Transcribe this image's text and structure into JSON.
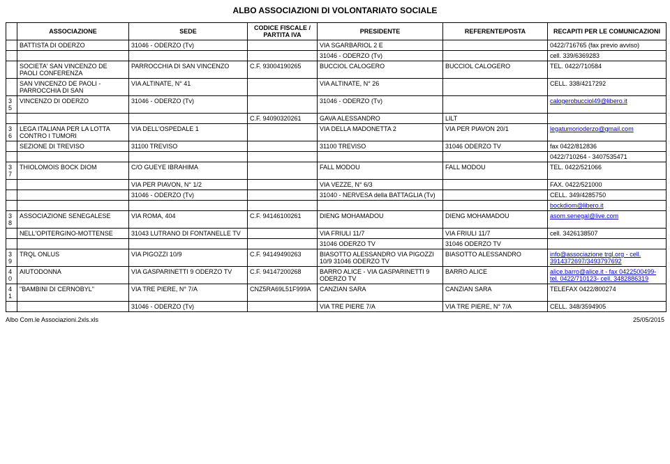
{
  "title": "ALBO ASSOCIAZIONI DI VOLONTARIATO SOCIALE",
  "headers": {
    "num": "",
    "assoc": "ASSOCIAZIONE",
    "sede": "SEDE",
    "cf": "CODICE FISCALE / PARTITA IVA",
    "pres": "PRESIDENTE",
    "ref": "REFERENTE/POSTA",
    "contact": "RECAPITI PER LE COMUNICAZIONI"
  },
  "footer": {
    "left": "Albo Com.le Associazioni.2xls.xls",
    "right": "25/05/2015"
  },
  "rows": [
    {
      "num": "",
      "assoc": "BATTISTA DI ODERZO",
      "sede": "31046 - ODERZO (Tv)",
      "cf": "",
      "pres": "VIA SGARBARIOL 2 E",
      "ref": "",
      "contact": "0422/716765 (fax previo avviso)"
    },
    {
      "num": "",
      "assoc": "",
      "sede": "",
      "cf": "",
      "pres": "31046 - ODERZO (Tv)",
      "ref": "",
      "contact": "cell. 339/6369283"
    },
    {
      "num": "",
      "assoc": "SOCIETA' SAN VINCENZO DE PAOLI CONFERENZA",
      "sede": "PARROCCHIA DI SAN VINCENZO",
      "cf": "C.F. 93004190265",
      "pres": "BUCCIOL CALOGERO",
      "ref": "BUCCIOL CALOGERO",
      "contact": "TEL. 0422/710584"
    },
    {
      "num": "",
      "assoc": "SAN VINCENZO DE PAOLI - PARROCCHIA DI SAN",
      "sede": "VIA ALTINATE, N° 41",
      "cf": "",
      "pres": "VIA ALTINATE, N° 26",
      "ref": "",
      "contact": "CELL. 338/4217292"
    },
    {
      "num": "35",
      "assoc": "VINCENZO  DI ODERZO",
      "sede": "31046 - ODERZO (Tv)",
      "cf": "",
      "pres": "31046 - ODERZO (Tv)",
      "ref": "",
      "contact": "calogerobucciol49@libero.it",
      "contactLink": true
    },
    {
      "num": "",
      "assoc": "",
      "sede": "",
      "cf": "C.F. 94090320261",
      "pres": "GAVA ALESSANDRO",
      "ref": "LILT",
      "contact": ""
    },
    {
      "num": "36",
      "assoc": "LEGA ITALIANA PER LA LOTTA CONTRO I TUMORI",
      "sede": "VIA DELL'OSPEDALE 1",
      "cf": "",
      "pres": "VIA DELLA MADONETTA 2",
      "ref": "VIA PER PIAVON 20/1",
      "contact": "legatumorioderzo@gmail.com",
      "contactLink": true
    },
    {
      "num": "",
      "assoc": "SEZIONE DI TREVISO",
      "sede": "31100 TREVISO",
      "cf": "",
      "pres": "31100 TREVISO",
      "ref": "31046 ODERZO TV",
      "contact": "fax 0422/812836"
    },
    {
      "num": "",
      "assoc": "",
      "sede": "",
      "cf": "",
      "pres": "",
      "ref": "",
      "contact": "0422/710264 - 3407535471"
    },
    {
      "num": "37",
      "assoc": "THIOLOMOIS BOCK DIOM",
      "sede": "C/O GUEYE IBRAHIMA",
      "cf": "",
      "pres": "FALL MODOU",
      "ref": "FALL MODOU",
      "contact": "TEL. 0422/521066"
    },
    {
      "num": "",
      "assoc": "",
      "sede": "VIA PER PIAVON, N° 1/2",
      "cf": "",
      "pres": "VIA VEZZE, N° 6/3",
      "ref": "",
      "contact": "FAX. 0422/521000"
    },
    {
      "num": "",
      "assoc": "",
      "sede": "31046 - ODERZO (Tv)",
      "cf": "",
      "pres": "31040 - NERVESA della BATTAGLIA (Tv)",
      "ref": "",
      "contact": "CELL. 349/4285750"
    },
    {
      "num": "",
      "assoc": "",
      "sede": "",
      "cf": "",
      "pres": "",
      "ref": "",
      "contact": "bockdiom@libero.it",
      "contactLink": true
    },
    {
      "num": "38",
      "assoc": "ASSOCIAZIONE SENEGALESE",
      "sede": "VIA ROMA, 404",
      "cf": "C.F. 94146100261",
      "pres": "DIENG MOHAMADOU",
      "ref": "DIENG MOHAMADOU",
      "contact": "asom.senegal@live.com",
      "contactLink": true
    },
    {
      "num": "",
      "assoc": "NELL'OPITERGINO-MOTTENSE",
      "sede": "31043 LUTRANO DI FONTANELLE TV",
      "cf": "",
      "pres": "VIA FRIULI 11/7",
      "ref": "VIA FRIULI 11/7",
      "contact": "cell. 3426138507"
    },
    {
      "num": "",
      "assoc": "",
      "sede": "",
      "cf": "",
      "pres": "31046 ODERZO TV",
      "ref": "31046 ODERZO TV",
      "contact": ""
    },
    {
      "num": "39",
      "assoc": "TRQL ONLUS",
      "sede": "VIA PIGOZZI 10/9",
      "cf": "C.F. 94149490263",
      "pres": "BIASOTTO ALESSANDRO VIA PIGOZZI 10/9 31046 ODERZO TV",
      "ref": "BIASOTTO ALESSANDRO",
      "contact": "info@associazione trql.org - cell. 3914372697/3493797692",
      "contactLink": true
    },
    {
      "num": "40",
      "assoc": "AIUTODONNA",
      "sede": "VIA GASPARINETTI 9 ODERZO TV",
      "cf": "C.F. 94147200268",
      "pres": "BARRO ALICE - VIA GASPARINETTI 9 ODERZO TV",
      "ref": "BARRO ALICE",
      "contact": "alice.barro@alice.it - fax 0422500499- tel. 0422/710123- cell. 3482886319",
      "contactLink": true
    },
    {
      "num": "41",
      "assoc": "\"BAMBINI DI CERNOBYL\"",
      "sede": "VIA TRE PIERE, N° 7/A",
      "cf": "CNZ5RA69L51F999A",
      "pres": "CANZIAN SARA",
      "ref": "CANZIAN SARA",
      "contact": "TELEFAX 0422/800274"
    },
    {
      "num": "",
      "assoc": "",
      "sede": "31046 - ODERZO (Tv)",
      "cf": "",
      "pres": "VIA TRE PIERE 7/A",
      "ref": "VIA TRE PIERE, N° 7/A",
      "contact": "CELL. 348/3594905"
    }
  ]
}
